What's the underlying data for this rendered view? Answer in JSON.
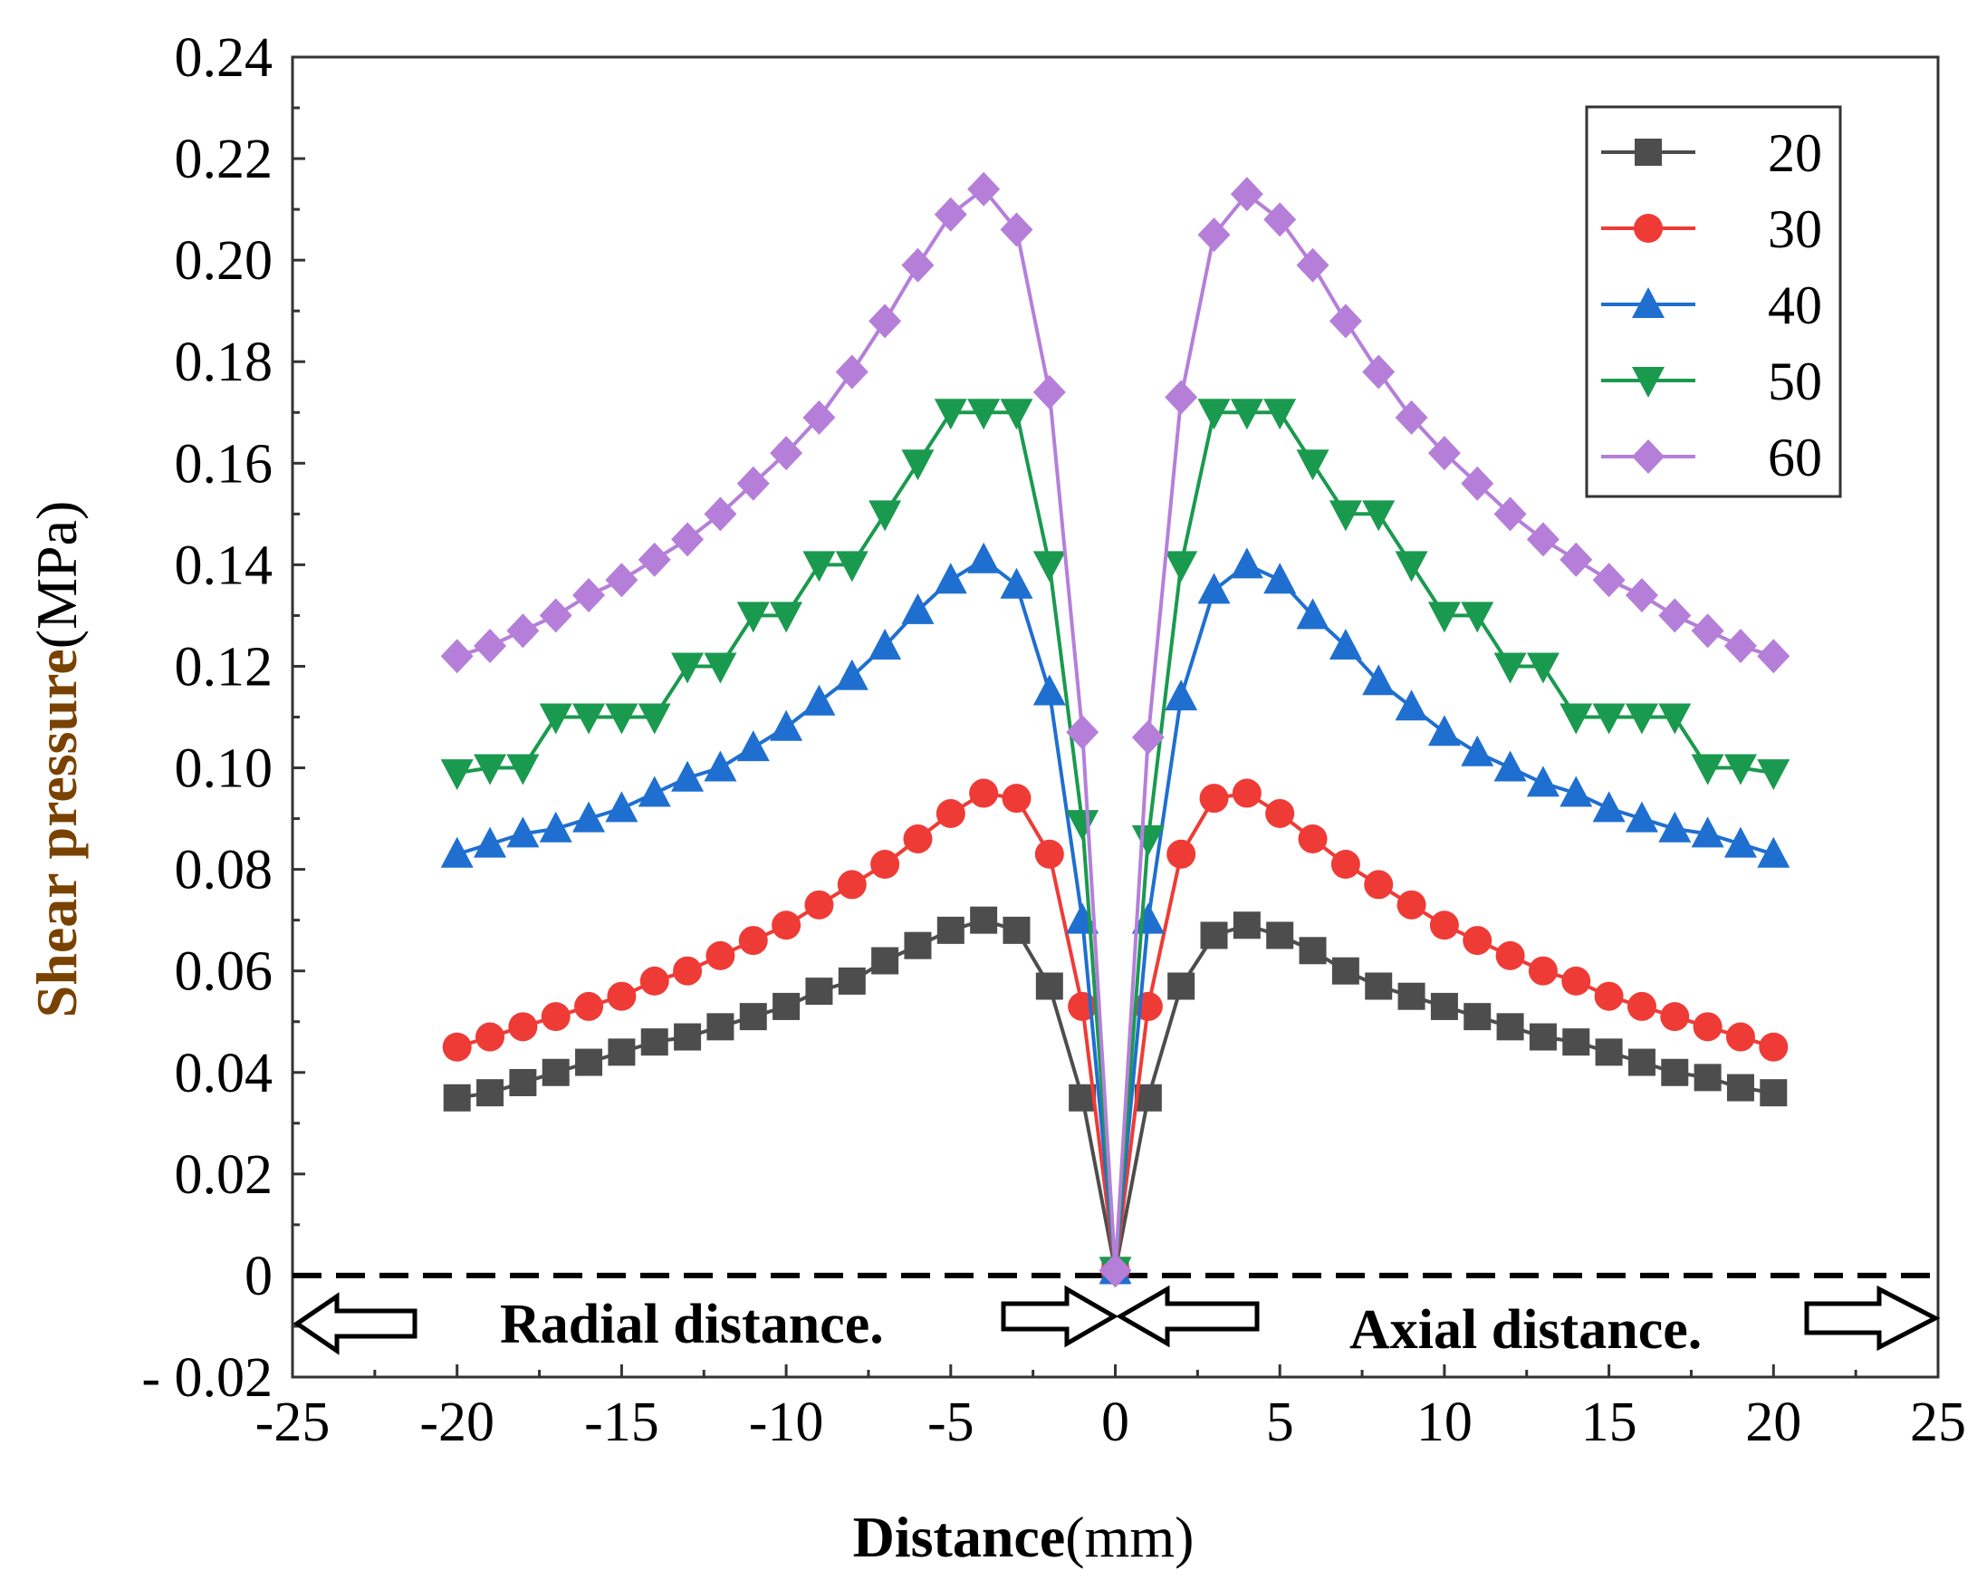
{
  "chart_data": {
    "type": "line",
    "title": "",
    "xlabel_bold": "Distance",
    "xlabel_unit": "(mm)",
    "ylabel_bold": "Shear pressure",
    "ylabel_unit": "(MPa)",
    "xlim": [
      -25,
      25
    ],
    "ylim": [
      -0.02,
      0.24
    ],
    "xticks": [
      -25,
      -20,
      -15,
      -10,
      -5,
      0,
      5,
      10,
      15,
      20,
      25
    ],
    "xtick_labels": [
      "-25",
      "-20",
      "-15",
      "-10",
      "-5",
      "0",
      "5",
      "10",
      "15",
      "20",
      "25"
    ],
    "yticks": [
      -0.02,
      0,
      0.02,
      0.04,
      0.06,
      0.08,
      0.1,
      0.12,
      0.14,
      0.16,
      0.18,
      0.2,
      0.22,
      0.24
    ],
    "ytick_labels": [
      "- 0.02",
      "0",
      "0.02",
      "0.04",
      "0.06",
      "0.08",
      "0.10",
      "0.12",
      "0.14",
      "0.16",
      "0.18",
      "0.20",
      "0.22",
      "0.24"
    ],
    "grid": false,
    "legend_position": "top-right",
    "annotations": {
      "left": "Radial distance.",
      "right": "Axial distance."
    },
    "x": [
      -20,
      -19,
      -18,
      -17,
      -16,
      -15,
      -14,
      -13,
      -12,
      -11,
      -10,
      -9,
      -8,
      -7,
      -6,
      -5,
      -4,
      -3,
      -2,
      -1,
      0,
      1,
      2,
      3,
      4,
      5,
      6,
      7,
      8,
      9,
      10,
      11,
      12,
      13,
      14,
      15,
      16,
      17,
      18,
      19,
      20
    ],
    "series": [
      {
        "name": "20",
        "color": "#4d4d4d",
        "marker": "square",
        "values": [
          0.035,
          0.036,
          0.038,
          0.04,
          0.042,
          0.044,
          0.046,
          0.047,
          0.049,
          0.051,
          0.053,
          0.056,
          0.058,
          0.062,
          0.065,
          0.068,
          0.07,
          0.068,
          0.057,
          0.035,
          0.001,
          0.035,
          0.057,
          0.067,
          0.069,
          0.067,
          0.064,
          0.06,
          0.057,
          0.055,
          0.053,
          0.051,
          0.049,
          0.047,
          0.046,
          0.044,
          0.042,
          0.04,
          0.039,
          0.037,
          0.036
        ]
      },
      {
        "name": "30",
        "color": "#ef3b36",
        "marker": "circle",
        "values": [
          0.045,
          0.047,
          0.049,
          0.051,
          0.053,
          0.055,
          0.058,
          0.06,
          0.063,
          0.066,
          0.069,
          0.073,
          0.077,
          0.081,
          0.086,
          0.091,
          0.095,
          0.094,
          0.083,
          0.053,
          0.001,
          0.053,
          0.083,
          0.094,
          0.095,
          0.091,
          0.086,
          0.081,
          0.077,
          0.073,
          0.069,
          0.066,
          0.063,
          0.06,
          0.058,
          0.055,
          0.053,
          0.051,
          0.049,
          0.047,
          0.045
        ]
      },
      {
        "name": "40",
        "color": "#1f6fd1",
        "marker": "triangle-up",
        "values": [
          0.083,
          0.085,
          0.087,
          0.088,
          0.09,
          0.092,
          0.095,
          0.098,
          0.1,
          0.104,
          0.108,
          0.113,
          0.118,
          0.124,
          0.131,
          0.137,
          0.141,
          0.136,
          0.115,
          0.07,
          0.001,
          0.07,
          0.114,
          0.135,
          0.14,
          0.137,
          0.13,
          0.124,
          0.117,
          0.112,
          0.107,
          0.103,
          0.1,
          0.097,
          0.095,
          0.092,
          0.09,
          0.088,
          0.087,
          0.085,
          0.083
        ]
      },
      {
        "name": "50",
        "color": "#1a9a4f",
        "marker": "triangle-down",
        "values": [
          0.099,
          0.1,
          0.1,
          0.11,
          0.11,
          0.11,
          0.11,
          0.12,
          0.12,
          0.13,
          0.13,
          0.14,
          0.14,
          0.15,
          0.16,
          0.17,
          0.17,
          0.17,
          0.14,
          0.089,
          0.001,
          0.086,
          0.14,
          0.17,
          0.17,
          0.17,
          0.16,
          0.15,
          0.15,
          0.14,
          0.13,
          0.13,
          0.12,
          0.12,
          0.11,
          0.11,
          0.11,
          0.11,
          0.1,
          0.1,
          0.099
        ]
      },
      {
        "name": "60",
        "color": "#b57fd9",
        "marker": "diamond",
        "values": [
          0.122,
          0.124,
          0.127,
          0.13,
          0.134,
          0.137,
          0.141,
          0.145,
          0.15,
          0.156,
          0.162,
          0.169,
          0.178,
          0.188,
          0.199,
          0.209,
          0.214,
          0.206,
          0.174,
          0.107,
          0.001,
          0.106,
          0.173,
          0.205,
          0.213,
          0.208,
          0.199,
          0.188,
          0.178,
          0.169,
          0.162,
          0.156,
          0.15,
          0.145,
          0.141,
          0.137,
          0.134,
          0.13,
          0.127,
          0.124,
          0.122
        ]
      }
    ]
  }
}
